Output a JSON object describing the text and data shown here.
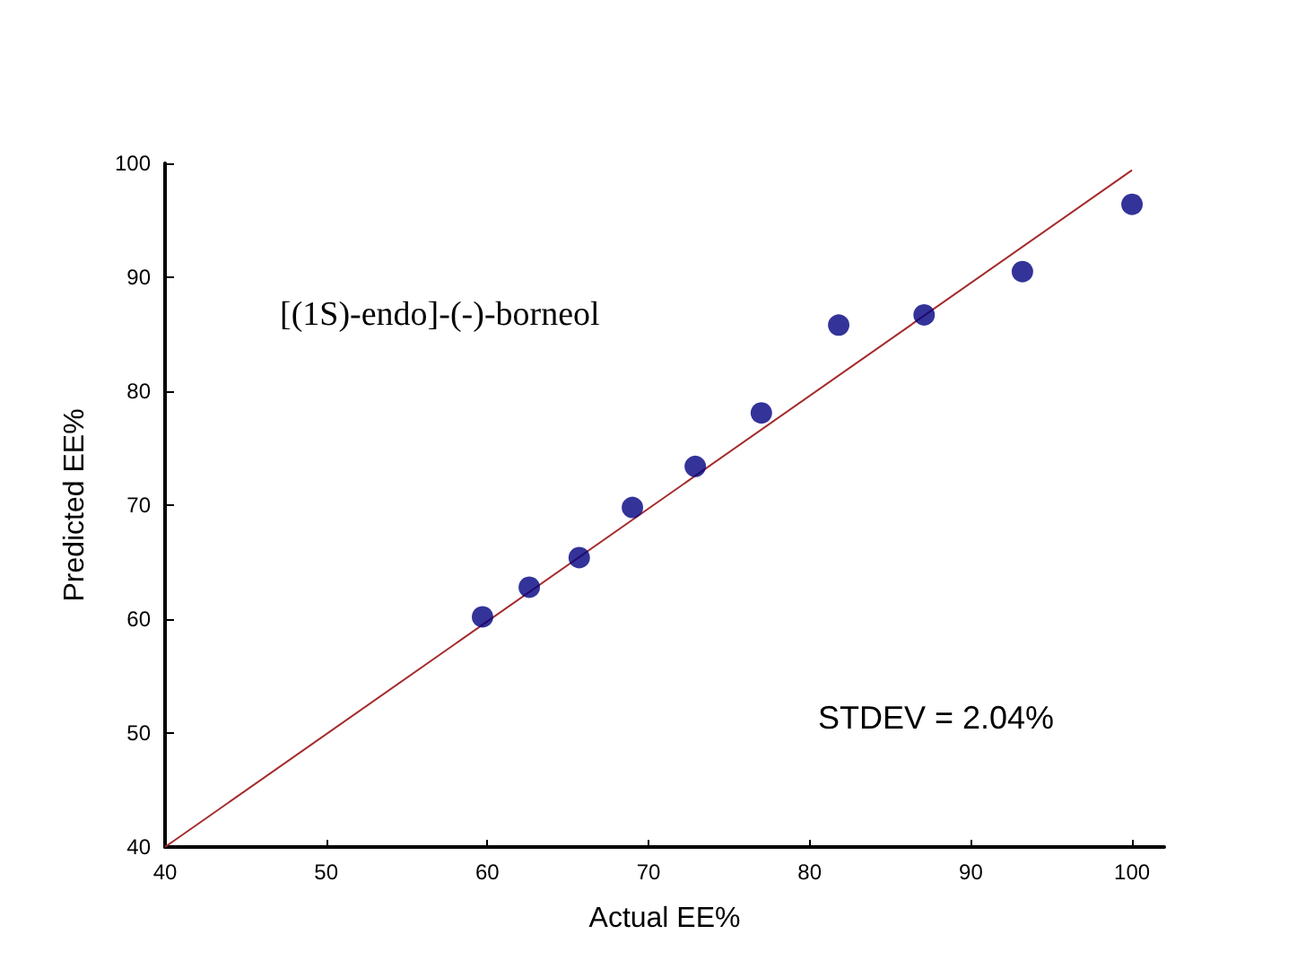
{
  "chart_data": {
    "type": "scatter",
    "xlabel": "Actual EE%",
    "ylabel": "Predicted EE%",
    "annotations": [
      "[(1S)-endo]-(-)-borneol",
      "STDEV = 2.04%"
    ],
    "x": [
      59.7,
      62.6,
      65.7,
      69.0,
      72.9,
      77.0,
      81.8,
      87.1,
      93.2,
      100
    ],
    "series": [
      {
        "color": "#000080",
        "values": [
          60.2,
          62.8,
          65.4,
          69.8,
          73.4,
          78.1,
          85.8,
          86.7,
          90.5,
          96.4
        ]
      },
      {
        "type": "line",
        "color": "#a52a2a",
        "x": [
          40,
          100
        ],
        "values": [
          40,
          99.4
        ],
        "marker": "none"
      }
    ],
    "xlim": [
      40,
      102
    ],
    "ylim": [
      40,
      100
    ],
    "xticks": [
      40,
      50,
      60,
      70,
      80,
      90,
      100
    ],
    "yticks": [
      40,
      50,
      60,
      70,
      80,
      90,
      100
    ],
    "grid": false,
    "marker": "circle"
  }
}
